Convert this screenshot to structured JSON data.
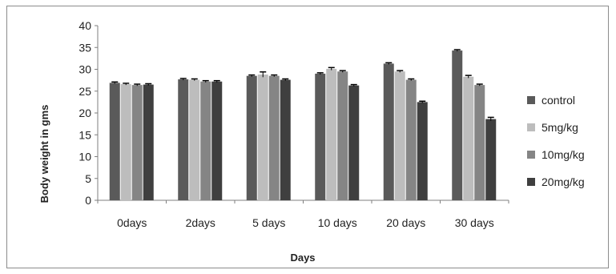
{
  "chart_data": {
    "type": "bar",
    "title": "",
    "xlabel": "Days",
    "ylabel": "Body weight in gms",
    "ylim": [
      0,
      40
    ],
    "yticks": [
      0,
      5,
      10,
      15,
      20,
      25,
      30,
      35,
      40
    ],
    "grid": false,
    "legend_position": "right",
    "categories": [
      "0days",
      "2days",
      "5 days",
      "10 days",
      "20 days",
      "30 days"
    ],
    "series": [
      {
        "name": "control",
        "color": "#5a5a5a",
        "values": [
          26.9,
          27.7,
          28.5,
          29.0,
          31.3,
          34.3
        ],
        "errors": [
          0.2,
          0.2,
          0.2,
          0.2,
          0.2,
          0.2
        ]
      },
      {
        "name": "5mg/kg",
        "color": "#bdbdbd",
        "values": [
          26.6,
          27.6,
          28.8,
          30.1,
          29.5,
          28.3
        ],
        "errors": [
          0.2,
          0.2,
          0.6,
          0.3,
          0.2,
          0.3
        ]
      },
      {
        "name": "10mg/kg",
        "color": "#858585",
        "values": [
          26.4,
          27.2,
          28.5,
          29.5,
          27.6,
          26.4
        ],
        "errors": [
          0.2,
          0.2,
          0.2,
          0.2,
          0.2,
          0.2
        ]
      },
      {
        "name": "20mg/kg",
        "color": "#3f3f3f",
        "values": [
          26.5,
          27.2,
          27.6,
          26.3,
          22.5,
          18.6
        ],
        "errors": [
          0.2,
          0.2,
          0.2,
          0.2,
          0.2,
          0.4
        ]
      }
    ]
  }
}
